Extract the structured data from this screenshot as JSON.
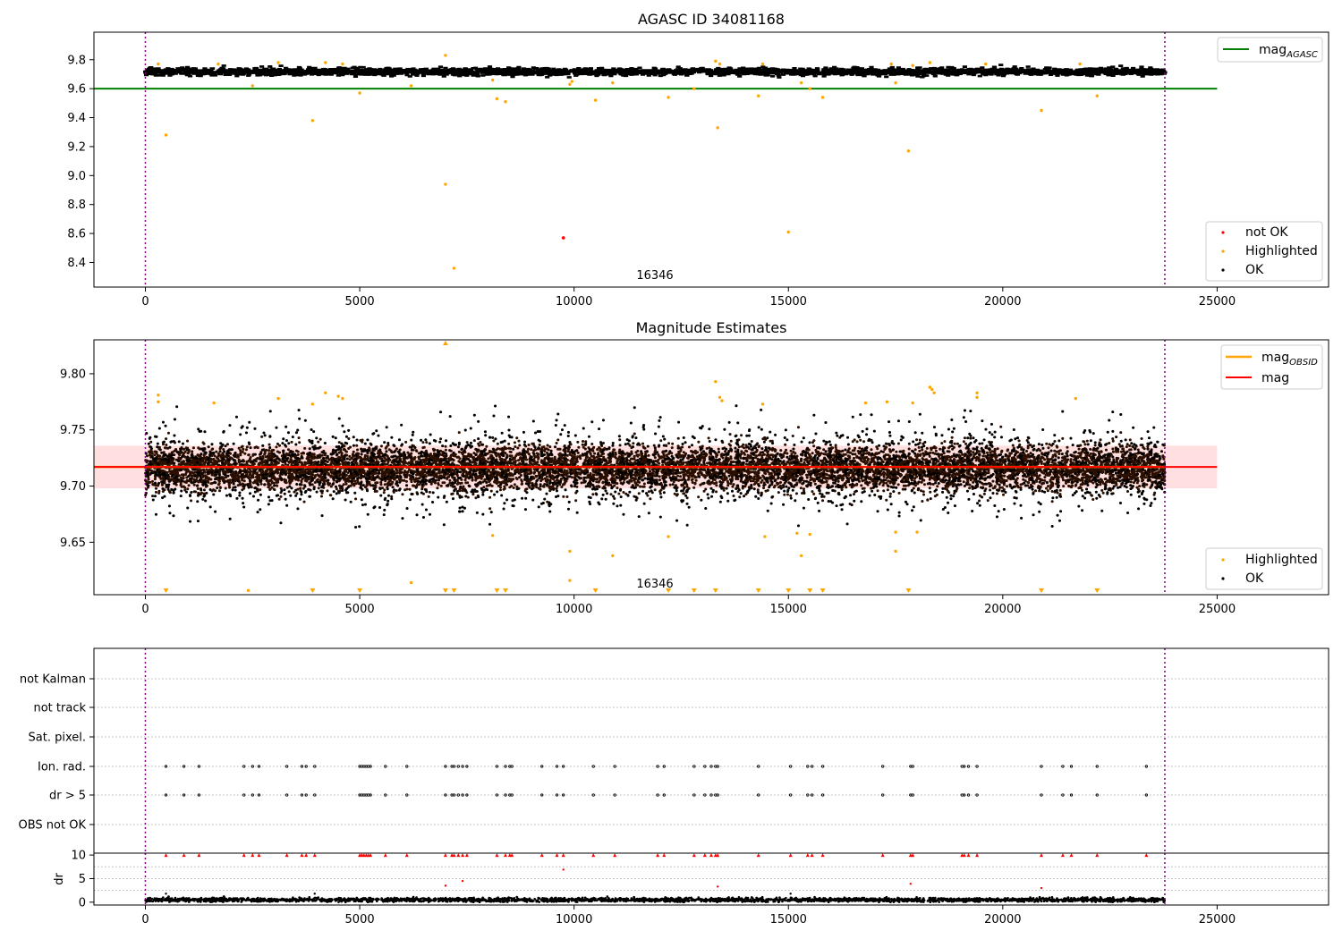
{
  "colors": {
    "ok": "#000000",
    "highlighted": "#ffa500",
    "not_ok": "#ff0000",
    "agasc_line": "#008000",
    "mag_line": "#ff0000",
    "mag_band": "#ffc0c0",
    "mag_obsid": "#ffa500",
    "obsid_boundary": "#800080",
    "grid": "#b0b0b0"
  },
  "chart_data": [
    {
      "type": "scatter",
      "title": "AGASC ID 34081168",
      "xlabel": "",
      "ylabel": "",
      "xlim": [
        -1200,
        27600
      ],
      "ylim": [
        8.23,
        9.99
      ],
      "xticks": [
        0,
        5000,
        10000,
        15000,
        20000,
        25000
      ],
      "yticks": [
        8.4,
        8.6,
        8.8,
        9.0,
        9.2,
        9.4,
        9.6,
        9.8
      ],
      "ytick_labels": [
        "8.4",
        "8.6",
        "8.8",
        "9.0",
        "9.2",
        "9.4",
        "9.6",
        "9.8"
      ],
      "obsid_boundaries": [
        0,
        23780
      ],
      "obsid_label": {
        "text": "16346",
        "x": 11820
      },
      "lines": [
        {
          "name": "mag_AGASC",
          "y": 9.6,
          "x": [
            -1200,
            25000
          ],
          "color": "#008000"
        }
      ],
      "ok_band": {
        "center": 9.718,
        "spread": 0.022,
        "x": [
          0,
          23780
        ]
      },
      "highlighted_points": [
        [
          300,
          9.77
        ],
        [
          480,
          9.28
        ],
        [
          1700,
          9.77
        ],
        [
          2500,
          9.62
        ],
        [
          3100,
          9.78
        ],
        [
          3900,
          9.38
        ],
        [
          4200,
          9.78
        ],
        [
          4600,
          9.77
        ],
        [
          5000,
          9.57
        ],
        [
          6200,
          9.62
        ],
        [
          7000,
          9.83
        ],
        [
          7000,
          8.94
        ],
        [
          7200,
          8.36
        ],
        [
          8100,
          9.66
        ],
        [
          8200,
          9.53
        ],
        [
          8400,
          9.51
        ],
        [
          9900,
          9.63
        ],
        [
          9950,
          9.65
        ],
        [
          10500,
          9.52
        ],
        [
          10900,
          9.64
        ],
        [
          12200,
          9.54
        ],
        [
          12800,
          9.6
        ],
        [
          13300,
          9.79
        ],
        [
          13350,
          9.33
        ],
        [
          13400,
          9.77
        ],
        [
          14300,
          9.55
        ],
        [
          14400,
          9.77
        ],
        [
          15000,
          8.61
        ],
        [
          15300,
          9.64
        ],
        [
          15500,
          9.6
        ],
        [
          15800,
          9.54
        ],
        [
          17400,
          9.77
        ],
        [
          17500,
          9.64
        ],
        [
          17800,
          9.17
        ],
        [
          17900,
          9.76
        ],
        [
          18300,
          9.78
        ],
        [
          19600,
          9.77
        ],
        [
          20900,
          9.45
        ],
        [
          21800,
          9.77
        ],
        [
          22200,
          9.55
        ]
      ],
      "not_ok_points": [
        [
          9750,
          8.57
        ]
      ],
      "legend_upper": [
        {
          "label": "mag",
          "subscript": "AGASC",
          "color": "#008000"
        }
      ],
      "legend_lower": [
        {
          "label": "not OK",
          "color": "#ff0000"
        },
        {
          "label": "Highlighted",
          "color": "#ffa500"
        },
        {
          "label": "OK",
          "color": "#000000"
        }
      ]
    },
    {
      "type": "scatter",
      "title": "Magnitude Estimates",
      "xlabel": "",
      "ylabel": "",
      "xlim": [
        -1200,
        27600
      ],
      "ylim": [
        9.6033,
        9.8302
      ],
      "xticks": [
        0,
        5000,
        10000,
        15000,
        20000,
        25000
      ],
      "yticks": [
        9.65,
        9.7,
        9.75,
        9.8
      ],
      "ytick_labels": [
        "9.65",
        "9.70",
        "9.75",
        "9.80"
      ],
      "obsid_boundaries": [
        0,
        23780
      ],
      "obsid_label": {
        "text": "16346",
        "x": 11820
      },
      "mag": 9.717,
      "mag_band": [
        9.698,
        9.736
      ],
      "mag_obsid": 9.717,
      "ok_band": {
        "center": 9.716,
        "spread": 0.016,
        "outlier_spread": 0.03,
        "x": [
          0,
          23780
        ]
      },
      "highlighted_points": [
        [
          300,
          9.775
        ],
        [
          300,
          9.781
        ],
        [
          1600,
          9.774
        ],
        [
          3100,
          9.778
        ],
        [
          3900,
          9.773
        ],
        [
          4200,
          9.783
        ],
        [
          4500,
          9.78
        ],
        [
          4600,
          9.778
        ],
        [
          8100,
          9.656
        ],
        [
          9900,
          9.642
        ],
        [
          9900,
          9.616
        ],
        [
          10900,
          9.638
        ],
        [
          12200,
          9.655
        ],
        [
          13300,
          9.793
        ],
        [
          13400,
          9.779
        ],
        [
          13450,
          9.776
        ],
        [
          14400,
          9.773
        ],
        [
          14450,
          9.655
        ],
        [
          15200,
          9.658
        ],
        [
          15300,
          9.638
        ],
        [
          15500,
          9.657
        ],
        [
          16800,
          9.774
        ],
        [
          17300,
          9.775
        ],
        [
          17500,
          9.659
        ],
        [
          17500,
          9.642
        ],
        [
          17900,
          9.774
        ],
        [
          18000,
          9.659
        ],
        [
          18300,
          9.788
        ],
        [
          18350,
          9.786
        ],
        [
          18400,
          9.783
        ],
        [
          19400,
          9.783
        ],
        [
          19400,
          9.779
        ],
        [
          21700,
          9.778
        ],
        [
          2400,
          9.607
        ],
        [
          6200,
          9.614
        ]
      ],
      "highlighted_edge_markers_bottom": [
        480,
        3900,
        5000,
        7000,
        7200,
        8200,
        8400,
        10500,
        12200,
        12800,
        13300,
        14300,
        15000,
        15500,
        15800,
        17800,
        20900,
        22200
      ],
      "highlighted_edge_markers_top": [
        7000
      ],
      "legend_upper": [
        {
          "label": "mag",
          "subscript": "OBSID",
          "color": "#ffa500"
        },
        {
          "label": "mag",
          "subscript": "",
          "color": "#ff0000"
        }
      ],
      "legend_lower": [
        {
          "label": "Highlighted",
          "color": "#ffa500"
        },
        {
          "label": "OK",
          "color": "#000000"
        }
      ]
    },
    {
      "type": "scatter",
      "title": "",
      "xlim": [
        -1200,
        27600
      ],
      "obsid_boundaries": [
        0,
        23780
      ],
      "flag_rows": [
        "not Kalman",
        "not track",
        "Sat. pixel.",
        "Ion. rad.",
        "dr > 5",
        "OBS not OK"
      ],
      "flag_times": [
        480,
        900,
        1250,
        2300,
        2500,
        2650,
        3300,
        3650,
        3750,
        3950,
        5000,
        5050,
        5100,
        5150,
        5200,
        5250,
        5600,
        6100,
        7000,
        7150,
        7200,
        7300,
        7400,
        7500,
        8200,
        8400,
        8500,
        8550,
        9250,
        9600,
        9750,
        10450,
        10950,
        11950,
        12100,
        12800,
        13050,
        13200,
        13300,
        13350,
        14300,
        15050,
        15450,
        15550,
        15800,
        17200,
        17850,
        17900,
        19050,
        19100,
        19200,
        19400,
        20900,
        21400,
        21600,
        22200,
        23350
      ],
      "flag_marked_rows": [
        "Ion. rad.",
        "dr > 5"
      ],
      "dr": {
        "ylabel": "dr",
        "yticks": [
          0,
          5,
          10
        ],
        "ylim": [
          -0.6,
          10.4
        ],
        "clipped_value": 10,
        "points_at_clip": "flag_times",
        "extra_high_points": [
          [
            480,
            1.8
          ],
          [
            3950,
            1.8
          ],
          [
            7000,
            3.5
          ],
          [
            7400,
            4.5
          ],
          [
            9750,
            6.9
          ],
          [
            13350,
            3.3
          ],
          [
            17850,
            3.9
          ],
          [
            20900,
            3.0
          ],
          [
            15050,
            1.8
          ]
        ],
        "baseline_center": 0.5,
        "baseline_spread": 0.35
      },
      "xticks": [
        0,
        5000,
        10000,
        15000,
        20000,
        25000
      ]
    }
  ]
}
